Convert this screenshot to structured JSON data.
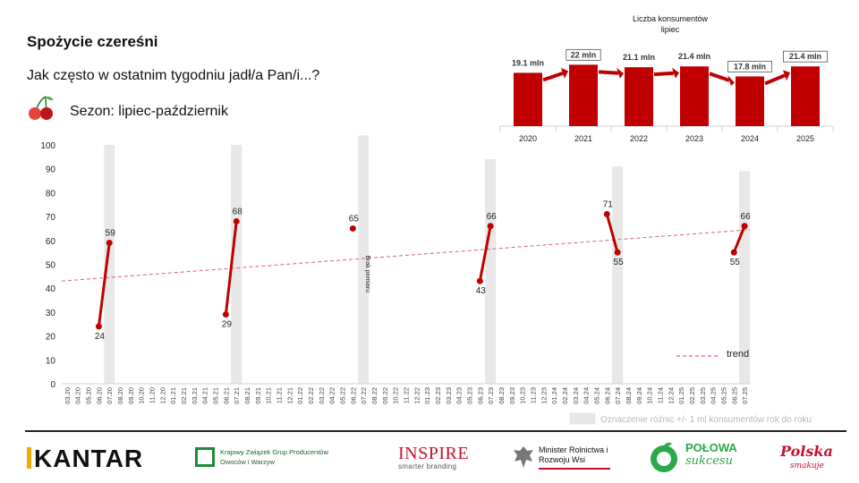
{
  "title": "Spożycie czereśni",
  "question": "Jak często w ostatnim tygodniu jadł/a Pan/i...?",
  "season": "Sezon: lipiec-październik",
  "chart_data": [
    {
      "type": "line",
      "ylim": [
        0,
        100
      ],
      "yticks": [
        0,
        10,
        20,
        30,
        40,
        50,
        60,
        70,
        80,
        90,
        100
      ],
      "grid": false,
      "categories": [
        "03.20",
        "04.20",
        "05.20",
        "06.20",
        "07.20",
        "08.20",
        "09.20",
        "10.20",
        "11.20",
        "12.20",
        "01.21",
        "02.21",
        "03.21",
        "04.21",
        "05.21",
        "06.21",
        "07.21",
        "08.21",
        "09.21",
        "10.21",
        "11.21",
        "12.21",
        "01.22",
        "02.22",
        "03.22",
        "04.22",
        "05.22",
        "06.22",
        "07.22",
        "08.22",
        "09.22",
        "10.22",
        "11.22",
        "12.22",
        "01.23",
        "02.23",
        "03.23",
        "04.23",
        "05.23",
        "06.23",
        "07.23",
        "08.23",
        "09.23",
        "10.23",
        "11.23",
        "12.23",
        "01.24",
        "02.24",
        "03.24",
        "04.24",
        "05.24",
        "06.24",
        "07.24",
        "08.24",
        "09.24",
        "10.24",
        "11.24",
        "12.24",
        "01.25",
        "02.25",
        "03.25",
        "04.25",
        "05.25",
        "06.25",
        "07.25"
      ],
      "highlight_columns": [
        "07.20",
        "07.21",
        "07.22",
        "07.23",
        "07.24",
        "07.25"
      ],
      "seasons": [
        {
          "points": [
            {
              "x": "06.20",
              "y": 24
            },
            {
              "x": "07.20",
              "y": 59
            }
          ]
        },
        {
          "points": [
            {
              "x": "06.21",
              "y": 29
            },
            {
              "x": "07.21",
              "y": 68
            }
          ]
        },
        {
          "points": [
            {
              "x": "06.22",
              "y": 65
            }
          ]
        },
        {
          "points": [
            {
              "x": "06.23",
              "y": 43
            },
            {
              "x": "07.23",
              "y": 66
            }
          ]
        },
        {
          "points": [
            {
              "x": "06.24",
              "y": 71
            },
            {
              "x": "07.24",
              "y": 55
            }
          ]
        },
        {
          "points": [
            {
              "x": "06.25",
              "y": 55
            },
            {
              "x": "07.25",
              "y": 66
            }
          ]
        }
      ],
      "trend": {
        "name": "trend",
        "start": {
          "x": "03.20",
          "y": 43
        },
        "end": {
          "x": "07.25",
          "y": 64.5
        }
      },
      "annotation": "Brak pomiaru",
      "highlight_legend": "Oznaczenie różnic +/- 1 ml konsumentów rok do roku",
      "colors": {
        "series": "#c00000",
        "trend": "#e06070",
        "highlight": "#e8e8e8"
      }
    },
    {
      "type": "bar",
      "title": "Liczba konsumentów\nlipiec",
      "categories": [
        "2020",
        "2021",
        "2022",
        "2023",
        "2024",
        "2025"
      ],
      "values": [
        19.1,
        22,
        21.1,
        21.4,
        17.8,
        21.4
      ],
      "labels": [
        "19.1 mln",
        "22 mln",
        "21.1 mln",
        "21.4 mln",
        "17.8 mln",
        "21.4 mln"
      ],
      "boxed_labels": [
        "2021",
        "2024",
        "2025"
      ],
      "colors": {
        "bar": "#c00000",
        "arrow": "#c00000"
      }
    }
  ],
  "logos": {
    "kantar": "KANTAR",
    "kzg": "Krajowy Związek Grup Producentów Owoców i Warzyw",
    "inspire": "INSPIRE",
    "inspire_sub": "smarter branding",
    "minister": "Minister Rolnictwa i Rozwoju Wsi",
    "polowa": "POŁOWA",
    "polowa_sub": "sukcesu",
    "polska": "Polska",
    "polska_sub": "smakuje"
  }
}
